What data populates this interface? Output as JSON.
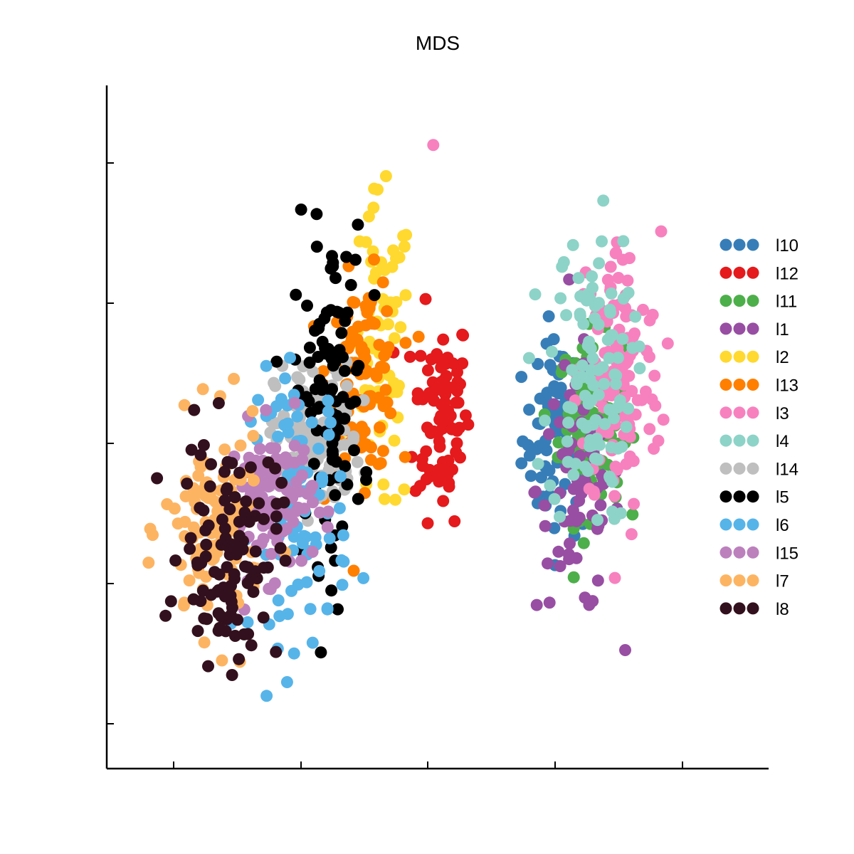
{
  "chart_data": {
    "type": "scatter",
    "title": "MDS",
    "xlabel": "",
    "ylabel": "",
    "xlim": [
      0,
      1
    ],
    "ylim": [
      0,
      1
    ],
    "grid": false,
    "legend_position": "right",
    "series": [
      {
        "name": "l10",
        "color": "#377eb8",
        "center": [
          0.74,
          0.48
        ],
        "spread": [
          0.055,
          0.13
        ],
        "count": 95
      },
      {
        "name": "l12",
        "color": "#e41a1c",
        "center": [
          0.535,
          0.52
        ],
        "spread": [
          0.04,
          0.14
        ],
        "count": 90
      },
      {
        "name": "l11",
        "color": "#4daf4a",
        "center": [
          0.79,
          0.5
        ],
        "spread": [
          0.045,
          0.12
        ],
        "count": 110
      },
      {
        "name": "l1",
        "color": "#984ea3",
        "center": [
          0.77,
          0.4
        ],
        "spread": [
          0.06,
          0.17
        ],
        "count": 75
      },
      {
        "name": "l2",
        "color": "#ffd92f",
        "center": [
          0.43,
          0.6
        ],
        "spread": [
          0.045,
          0.22
        ],
        "count": 70
      },
      {
        "name": "l13",
        "color": "#ff7f00",
        "center": [
          0.4,
          0.58
        ],
        "spread": [
          0.05,
          0.13
        ],
        "count": 110
      },
      {
        "name": "l3",
        "color": "#f781bf",
        "center": [
          0.84,
          0.58
        ],
        "spread": [
          0.06,
          0.19
        ],
        "count": 130
      },
      {
        "name": "l4",
        "color": "#8dd3c7",
        "center": [
          0.79,
          0.58
        ],
        "spread": [
          0.06,
          0.2
        ],
        "count": 110
      },
      {
        "name": "l14",
        "color": "#bfbfbf",
        "center": [
          0.32,
          0.48
        ],
        "spread": [
          0.06,
          0.1
        ],
        "count": 130
      },
      {
        "name": "l5",
        "color": "#000000",
        "center": [
          0.34,
          0.55
        ],
        "spread": [
          0.05,
          0.22
        ],
        "count": 100
      },
      {
        "name": "l6",
        "color": "#56b4e9",
        "center": [
          0.29,
          0.37
        ],
        "spread": [
          0.07,
          0.18
        ],
        "count": 100
      },
      {
        "name": "l15",
        "color": "#bc80bd",
        "center": [
          0.24,
          0.38
        ],
        "spread": [
          0.06,
          0.1
        ],
        "count": 110
      },
      {
        "name": "l7",
        "color": "#fdb462",
        "center": [
          0.14,
          0.33
        ],
        "spread": [
          0.07,
          0.14
        ],
        "count": 110
      },
      {
        "name": "l8",
        "color": "#33101d",
        "center": [
          0.17,
          0.3
        ],
        "spread": [
          0.07,
          0.15
        ],
        "count": 110
      }
    ],
    "outlier": {
      "series": "l3",
      "x": 0.52,
      "y": 0.95
    }
  }
}
